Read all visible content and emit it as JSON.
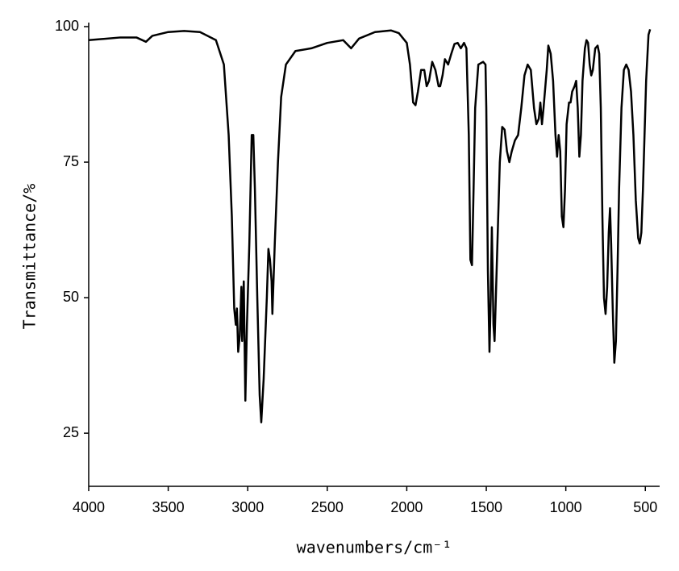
{
  "chart_data": {
    "type": "line",
    "x_label": "wavenumbers/cm⁻¹",
    "y_label": "Transmittance/%",
    "xlim": [
      4000,
      410
    ],
    "ylim": [
      15.2,
      100
    ],
    "xticks": [
      4000,
      3500,
      3000,
      2500,
      2000,
      1500,
      1000,
      500
    ],
    "yticks": [
      25,
      50,
      75,
      100
    ],
    "color": "#000000",
    "x": [
      4000,
      3800,
      3700,
      3640,
      3600,
      3500,
      3400,
      3300,
      3200,
      3150,
      3120,
      3100,
      3085,
      3075,
      3068,
      3060,
      3050,
      3040,
      3035,
      3025,
      3015,
      3005,
      2990,
      2975,
      2965,
      2955,
      2940,
      2925,
      2915,
      2900,
      2880,
      2870,
      2860,
      2850,
      2845,
      2830,
      2810,
      2790,
      2760,
      2700,
      2600,
      2500,
      2400,
      2350,
      2300,
      2200,
      2100,
      2050,
      2000,
      1980,
      1960,
      1945,
      1930,
      1910,
      1890,
      1875,
      1860,
      1840,
      1820,
      1800,
      1790,
      1775,
      1760,
      1740,
      1720,
      1700,
      1680,
      1660,
      1640,
      1625,
      1610,
      1600,
      1590,
      1580,
      1570,
      1550,
      1520,
      1505,
      1500,
      1490,
      1480,
      1472,
      1465,
      1455,
      1448,
      1440,
      1430,
      1415,
      1400,
      1385,
      1370,
      1355,
      1340,
      1320,
      1300,
      1280,
      1260,
      1240,
      1220,
      1200,
      1185,
      1170,
      1160,
      1150,
      1140,
      1120,
      1110,
      1095,
      1080,
      1065,
      1055,
      1045,
      1035,
      1025,
      1015,
      1005,
      995,
      980,
      970,
      960,
      945,
      935,
      925,
      915,
      905,
      895,
      880,
      870,
      860,
      850,
      840,
      830,
      815,
      800,
      790,
      780,
      770,
      760,
      750,
      740,
      730,
      722,
      715,
      705,
      695,
      685,
      675,
      665,
      650,
      635,
      620,
      605,
      590,
      575,
      560,
      545,
      535,
      525,
      515,
      505,
      495,
      480,
      470
    ],
    "values": [
      97.5,
      98,
      98,
      97.2,
      98.3,
      99,
      99.2,
      99,
      97.5,
      93,
      80,
      65,
      48,
      45,
      48,
      40,
      43,
      52,
      42,
      53,
      31,
      45,
      60,
      80,
      80,
      70,
      50,
      32,
      27,
      35,
      50,
      59,
      57,
      53,
      47,
      60,
      75,
      87,
      93,
      95.5,
      96,
      97,
      97.5,
      96,
      97.8,
      99,
      99.3,
      98.8,
      97,
      93,
      86,
      85.5,
      88,
      92,
      92,
      89,
      90,
      93.5,
      92,
      89,
      89,
      91,
      94,
      93,
      95,
      96.8,
      97,
      96,
      97,
      96,
      80,
      57,
      56,
      70,
      85,
      93,
      93.5,
      93,
      85,
      55,
      40,
      50,
      63,
      45,
      42,
      50,
      60,
      75,
      81.5,
      81,
      77,
      75,
      77,
      79,
      80,
      85,
      91,
      93,
      92,
      85,
      82,
      83,
      86,
      82,
      85,
      92,
      96.5,
      95,
      90,
      80,
      76,
      80,
      77,
      65,
      63,
      70,
      82,
      86,
      86,
      88,
      89,
      90,
      85,
      76,
      80,
      90,
      96,
      97.5,
      97,
      93,
      91,
      92,
      96,
      96.5,
      95,
      85,
      65,
      50,
      47,
      52,
      62,
      66.5,
      60,
      48,
      38,
      42,
      55,
      70,
      85,
      92,
      93,
      92,
      88,
      80,
      68,
      61,
      60,
      62,
      70,
      80,
      90,
      98.5,
      99.5
    ]
  }
}
